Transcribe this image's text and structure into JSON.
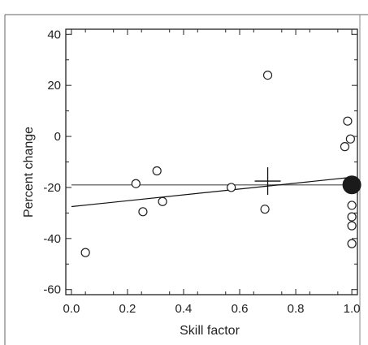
{
  "chart_data": {
    "type": "scatter",
    "title": "",
    "xlabel": "Skill factor",
    "ylabel": "Percent change",
    "xlim": [
      -0.02,
      1.02
    ],
    "ylim": [
      -62,
      42
    ],
    "x_ticks": [
      0.0,
      0.2,
      0.4,
      0.6,
      0.8,
      1.0
    ],
    "x_tick_labels": [
      "0.0",
      "0.2",
      "0.4",
      "0.6",
      "0.8",
      "1.0"
    ],
    "y_ticks": [
      40,
      20,
      0,
      -20,
      -40,
      -60
    ],
    "y_tick_labels": [
      "40",
      "20",
      "0",
      "-20",
      "-40",
      "-60"
    ],
    "grid": false,
    "series": [
      {
        "x": [
          0.05,
          0.23,
          0.255,
          0.305,
          0.325,
          0.57,
          0.69,
          0.7,
          0.975,
          0.985,
          0.995,
          1.0,
          1.0,
          1.0,
          1.0,
          1.0
        ],
        "y": [
          -45.5,
          -18.5,
          -29.5,
          -13.5,
          -25.5,
          -20.0,
          -28.5,
          24.0,
          -4.0,
          6.0,
          -1.0,
          -27.0,
          -31.5,
          -35.0,
          -42.0,
          -19.0
        ],
        "marker": "open-circle"
      }
    ],
    "mean_point": {
      "x": 1.0,
      "y": -19.0,
      "marker": "filled-circle"
    },
    "centroid_cross": {
      "x": 0.7,
      "y": -17.5
    },
    "horizontal_line": {
      "y": -19.0,
      "color": "#777777"
    },
    "fit_line": {
      "x": [
        0.0,
        1.0
      ],
      "y": [
        -27.5,
        -16.0
      ],
      "color": "#111111"
    }
  }
}
